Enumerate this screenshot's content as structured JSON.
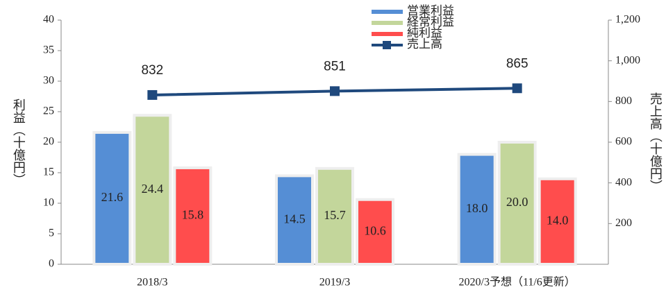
{
  "chart_data": {
    "type": "bar",
    "categories": [
      "2018/3",
      "2019/3",
      "2020/3予想（11/6更新）"
    ],
    "series": [
      {
        "name": "営業利益",
        "color": "#558ed5",
        "values": [
          21.6,
          14.5,
          18.0
        ],
        "value_labels": [
          "21.6",
          "14.5",
          "18.0"
        ]
      },
      {
        "name": "経常利益",
        "color": "#c3d69b",
        "values": [
          24.4,
          15.7,
          20.0
        ],
        "value_labels": [
          "24.4",
          "15.7",
          "20.0"
        ]
      },
      {
        "name": "純利益",
        "color": "#ff4d4d",
        "values": [
          15.8,
          10.6,
          14.0
        ],
        "value_labels": [
          "15.8",
          "10.6",
          "14.0"
        ]
      },
      {
        "name": "売上高",
        "type": "line",
        "axis": "y2",
        "color": "#1f497d",
        "values": [
          832,
          851,
          865
        ]
      }
    ],
    "ylabel": "利益（十億円）",
    "y2label": "売上高（十億円）",
    "ylim": [
      0,
      40
    ],
    "yticks": [
      0,
      5,
      10,
      15,
      20,
      25,
      30,
      35,
      40
    ],
    "y2lim": [
      0,
      1200
    ],
    "y2ticks": [
      200,
      400,
      600,
      800,
      {
        "value": 1000,
        "label": "1,000"
      },
      {
        "value": 1200,
        "label": "1,200"
      }
    ]
  }
}
